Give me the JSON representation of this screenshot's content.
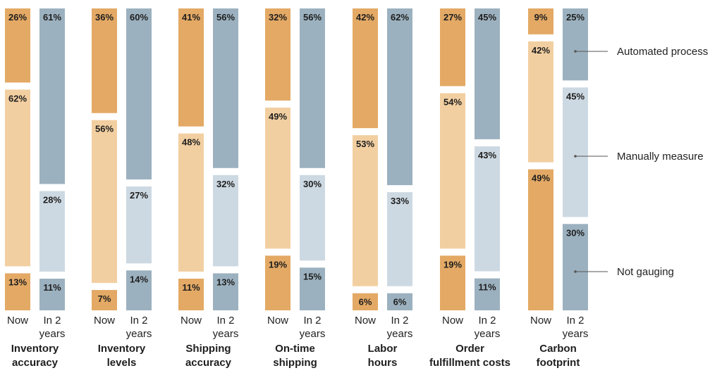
{
  "chart_data": {
    "type": "bar",
    "stacked": true,
    "stack_order_top_to_bottom": [
      "Automated process",
      "Manually measure",
      "Not gauging"
    ],
    "bar_labels": [
      "Now",
      "In 2|years"
    ],
    "groups": [
      {
        "label": "Inventory|accuracy",
        "now": {
          "automated": 26,
          "manual": 62,
          "not_gauging": 13
        },
        "in_2_years": {
          "automated": 61,
          "manual": 28,
          "not_gauging": 11
        }
      },
      {
        "label": "Inventory|levels",
        "now": {
          "automated": 36,
          "manual": 56,
          "not_gauging": 7
        },
        "in_2_years": {
          "automated": 60,
          "manual": 27,
          "not_gauging": 14
        }
      },
      {
        "label": "Shipping|accuracy",
        "now": {
          "automated": 41,
          "manual": 48,
          "not_gauging": 11
        },
        "in_2_years": {
          "automated": 56,
          "manual": 32,
          "not_gauging": 13
        }
      },
      {
        "label": "On-time|shipping",
        "now": {
          "automated": 32,
          "manual": 49,
          "not_gauging": 19
        },
        "in_2_years": {
          "automated": 56,
          "manual": 30,
          "not_gauging": 15
        }
      },
      {
        "label": "Labor|hours",
        "now": {
          "automated": 42,
          "manual": 53,
          "not_gauging": 6
        },
        "in_2_years": {
          "automated": 62,
          "manual": 33,
          "not_gauging": 6
        }
      },
      {
        "label": "Order|fulfillment costs",
        "now": {
          "automated": 27,
          "manual": 54,
          "not_gauging": 19
        },
        "in_2_years": {
          "automated": 45,
          "manual": 43,
          "not_gauging": 11
        }
      },
      {
        "label": "Carbon|footprint",
        "now": {
          "automated": 9,
          "manual": 42,
          "not_gauging": 49
        },
        "in_2_years": {
          "automated": 25,
          "manual": 45,
          "not_gauging": 30
        }
      }
    ],
    "legend": {
      "placement": "right",
      "entries": [
        "Automated process",
        "Manually measure",
        "Not gauging"
      ]
    },
    "colors": {
      "now_dark": "#e3a965",
      "now_light": "#f2cfa1",
      "future_dark": "#9cb1bf",
      "future_light": "#cdd9e2",
      "leader_line": "#555555",
      "text": "#1e1e1e"
    }
  }
}
